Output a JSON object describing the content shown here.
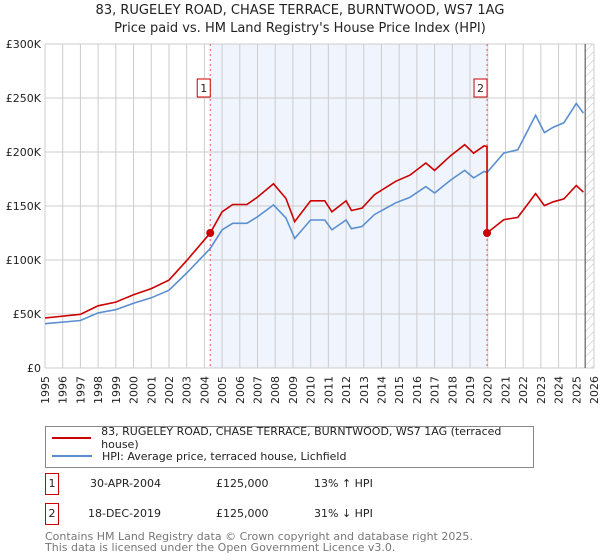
{
  "chart_data": {
    "type": "line",
    "title": "83, RUGELEY ROAD, CHASE TERRACE, BURNTWOOD, WS7 1AG",
    "subtitle": "Price paid vs. HM Land Registry's House Price Index (HPI)",
    "xlim": [
      1995,
      2026
    ],
    "ylim": [
      0,
      300000
    ],
    "y_ticks": [
      {
        "v": 0,
        "label": "£0"
      },
      {
        "v": 50000,
        "label": "£50K"
      },
      {
        "v": 100000,
        "label": "£100K"
      },
      {
        "v": 150000,
        "label": "£150K"
      },
      {
        "v": 200000,
        "label": "£200K"
      },
      {
        "v": 250000,
        "label": "£250K"
      },
      {
        "v": 300000,
        "label": "£300K"
      }
    ],
    "x_ticks": [
      "1995",
      "1996",
      "1997",
      "1998",
      "1999",
      "2000",
      "2001",
      "2002",
      "2003",
      "2004",
      "2005",
      "2006",
      "2007",
      "2008",
      "2009",
      "2010",
      "2011",
      "2012",
      "2013",
      "2014",
      "2015",
      "2016",
      "2017",
      "2018",
      "2019",
      "2020",
      "2021",
      "2022",
      "2023",
      "2024",
      "2025",
      "2026"
    ],
    "grid": true,
    "series": [
      {
        "name": "83, RUGELEY ROAD, CHASE TERRACE, BURNTWOOD, WS7 1AG (terraced house)",
        "color": "#cc0000",
        "x": [
          1995,
          1997,
          1998,
          1999,
          2000,
          2001,
          2002,
          2003,
          2004,
          2004.33,
          2005,
          2005.6,
          2006.4,
          2007,
          2007.9,
          2008.6,
          2009.1,
          2010,
          2010.8,
          2011.2,
          2012,
          2012.3,
          2012.9,
          2013.6,
          2014.8,
          2015.6,
          2016.5,
          2017,
          2017.9,
          2018.7,
          2019.2,
          2019.8,
          2019.96,
          2019.96,
          2020.9,
          2021.7,
          2022.7,
          2023.2,
          2023.7,
          2024.3,
          2025,
          2025.4
        ],
        "y": [
          46300,
          49700,
          57600,
          61000,
          67800,
          73500,
          81400,
          99400,
          118700,
          125000,
          144600,
          151400,
          151400,
          158200,
          170600,
          157000,
          135600,
          154800,
          154800,
          144600,
          154800,
          145800,
          148000,
          160500,
          172900,
          178500,
          189800,
          183000,
          196600,
          206800,
          198900,
          205700,
          205000,
          125000,
          137300,
          139400,
          161500,
          150400,
          153900,
          156600,
          169000,
          162800
        ]
      },
      {
        "name": "HPI: Average price, terraced house, Lichfield",
        "color": "#5b8fd0",
        "x": [
          1995,
          1997,
          1998,
          1999,
          2000,
          2001,
          2002,
          2003,
          2004,
          2004.33,
          2005,
          2005.6,
          2006.4,
          2007,
          2007.9,
          2008.6,
          2009.1,
          2010,
          2010.8,
          2011.2,
          2012,
          2012.3,
          2012.9,
          2013.6,
          2014.8,
          2015.6,
          2016.5,
          2017,
          2017.9,
          2018.7,
          2019.2,
          2019.8,
          2019.96,
          2020.9,
          2021.7,
          2022.7,
          2023.2,
          2023.7,
          2024.3,
          2025,
          2025.4
        ],
        "y": [
          41000,
          44000,
          51000,
          54000,
          60000,
          65000,
          72000,
          88000,
          105000,
          110600,
          128000,
          134000,
          134000,
          140000,
          151000,
          139000,
          120000,
          137000,
          137000,
          128000,
          137000,
          129000,
          131000,
          142000,
          153000,
          158000,
          168000,
          162000,
          174000,
          183000,
          176000,
          182000,
          181000,
          199000,
          202000,
          234000,
          218000,
          223000,
          227000,
          245000,
          236000
        ]
      }
    ],
    "sales": [
      {
        "id": "1",
        "x": 2004.33,
        "y": 125000
      },
      {
        "id": "2",
        "x": 2019.96,
        "y": 125000
      }
    ],
    "shaded_range": [
      2004.33,
      2019.96
    ],
    "forecast_from": 2025.5
  },
  "legend": {
    "property": "83, RUGELEY ROAD, CHASE TERRACE, BURNTWOOD, WS7 1AG (terraced house)",
    "hpi": "HPI: Average price, terraced house, Lichfield"
  },
  "transactions": [
    {
      "id": "1",
      "date": "30-APR-2004",
      "price": "£125,000",
      "hpi": "13% ↑ HPI"
    },
    {
      "id": "2",
      "date": "18-DEC-2019",
      "price": "£125,000",
      "hpi": "31% ↓ HPI"
    }
  ],
  "footer": [
    "Contains HM Land Registry data © Crown copyright and database right 2025.",
    "This data is licensed under the Open Government Licence v3.0."
  ]
}
